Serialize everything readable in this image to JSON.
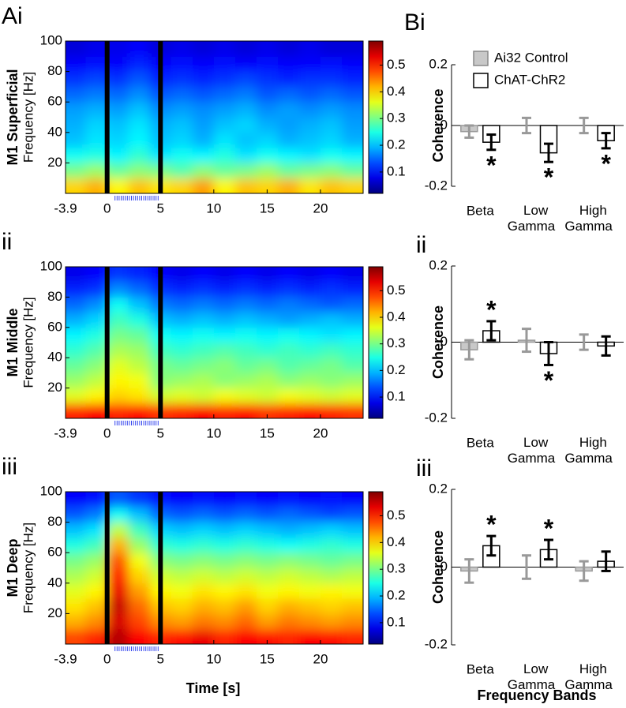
{
  "chart_data": [
    {
      "type": "heatmap",
      "panel": "Ai",
      "title": "M1 Superficial",
      "ylabel": "Frequency [Hz]",
      "xlim": [
        -3.9,
        24
      ],
      "xticks": [
        -3.9,
        0,
        5,
        10,
        15,
        20
      ],
      "ylim": [
        0,
        100
      ],
      "yticks": [
        20,
        40,
        60,
        80,
        100
      ],
      "clim": [
        0.02,
        0.59
      ],
      "cticks": [
        0.1,
        0.2,
        0.3,
        0.4,
        0.5
      ],
      "vlines": [
        0,
        5
      ],
      "x": [
        -3,
        -1,
        1,
        3,
        5,
        7,
        9,
        11,
        13,
        15,
        17,
        19,
        21,
        23
      ],
      "y": [
        5,
        15,
        25,
        35,
        45,
        55,
        65,
        75,
        85,
        95
      ],
      "z": [
        [
          0.4,
          0.42,
          0.38,
          0.41,
          0.39,
          0.4,
          0.43,
          0.38,
          0.41,
          0.4,
          0.42,
          0.39,
          0.41,
          0.4
        ],
        [
          0.3,
          0.32,
          0.29,
          0.31,
          0.3,
          0.28,
          0.31,
          0.29,
          0.3,
          0.32,
          0.29,
          0.3,
          0.31,
          0.29
        ],
        [
          0.24,
          0.25,
          0.23,
          0.26,
          0.22,
          0.24,
          0.23,
          0.25,
          0.22,
          0.24,
          0.23,
          0.22,
          0.24,
          0.23
        ],
        [
          0.2,
          0.22,
          0.21,
          0.23,
          0.2,
          0.21,
          0.19,
          0.22,
          0.2,
          0.21,
          0.19,
          0.2,
          0.21,
          0.19
        ],
        [
          0.19,
          0.21,
          0.2,
          0.22,
          0.19,
          0.2,
          0.18,
          0.2,
          0.21,
          0.19,
          0.18,
          0.19,
          0.2,
          0.18
        ],
        [
          0.18,
          0.19,
          0.18,
          0.2,
          0.17,
          0.18,
          0.17,
          0.18,
          0.19,
          0.17,
          0.18,
          0.17,
          0.18,
          0.17
        ],
        [
          0.15,
          0.16,
          0.15,
          0.17,
          0.14,
          0.15,
          0.14,
          0.15,
          0.16,
          0.14,
          0.15,
          0.14,
          0.15,
          0.14
        ],
        [
          0.12,
          0.13,
          0.12,
          0.14,
          0.11,
          0.12,
          0.11,
          0.12,
          0.13,
          0.12,
          0.11,
          0.12,
          0.12,
          0.11
        ],
        [
          0.09,
          0.1,
          0.09,
          0.11,
          0.09,
          0.1,
          0.09,
          0.1,
          0.09,
          0.1,
          0.09,
          0.09,
          0.1,
          0.09
        ],
        [
          0.07,
          0.08,
          0.08,
          0.09,
          0.07,
          0.08,
          0.07,
          0.08,
          0.07,
          0.08,
          0.07,
          0.08,
          0.07,
          0.07
        ]
      ]
    },
    {
      "type": "heatmap",
      "panel": "ii",
      "title": "M1 Middle",
      "ylabel": "Frequency [Hz]",
      "xlim": [
        -3.9,
        24
      ],
      "xticks": [
        -3.9,
        0,
        5,
        10,
        15,
        20
      ],
      "ylim": [
        0,
        100
      ],
      "yticks": [
        20,
        40,
        60,
        80,
        100
      ],
      "clim": [
        0.02,
        0.59
      ],
      "cticks": [
        0.1,
        0.2,
        0.3,
        0.4,
        0.5
      ],
      "vlines": [
        0,
        5
      ],
      "x": [
        -3,
        -1,
        1,
        3,
        5,
        7,
        9,
        11,
        13,
        15,
        17,
        19,
        21,
        23
      ],
      "y": [
        5,
        15,
        25,
        35,
        45,
        55,
        65,
        75,
        85,
        95
      ],
      "z": [
        [
          0.5,
          0.52,
          0.5,
          0.51,
          0.49,
          0.5,
          0.52,
          0.5,
          0.51,
          0.49,
          0.5,
          0.51,
          0.5,
          0.49
        ],
        [
          0.36,
          0.38,
          0.4,
          0.39,
          0.35,
          0.36,
          0.35,
          0.37,
          0.36,
          0.35,
          0.37,
          0.36,
          0.35,
          0.36
        ],
        [
          0.32,
          0.34,
          0.38,
          0.37,
          0.31,
          0.32,
          0.33,
          0.31,
          0.32,
          0.33,
          0.31,
          0.32,
          0.31,
          0.32
        ],
        [
          0.29,
          0.31,
          0.36,
          0.34,
          0.3,
          0.29,
          0.3,
          0.31,
          0.29,
          0.3,
          0.28,
          0.29,
          0.3,
          0.28
        ],
        [
          0.26,
          0.28,
          0.33,
          0.32,
          0.27,
          0.26,
          0.27,
          0.28,
          0.27,
          0.26,
          0.27,
          0.26,
          0.27,
          0.26
        ],
        [
          0.23,
          0.25,
          0.3,
          0.29,
          0.24,
          0.23,
          0.24,
          0.23,
          0.24,
          0.23,
          0.24,
          0.23,
          0.22,
          0.23
        ],
        [
          0.19,
          0.21,
          0.27,
          0.25,
          0.2,
          0.19,
          0.2,
          0.19,
          0.2,
          0.19,
          0.18,
          0.19,
          0.2,
          0.19
        ],
        [
          0.15,
          0.17,
          0.24,
          0.2,
          0.16,
          0.15,
          0.16,
          0.15,
          0.16,
          0.15,
          0.16,
          0.15,
          0.14,
          0.15
        ],
        [
          0.11,
          0.12,
          0.17,
          0.15,
          0.12,
          0.11,
          0.12,
          0.11,
          0.12,
          0.11,
          0.12,
          0.11,
          0.12,
          0.11
        ],
        [
          0.08,
          0.09,
          0.12,
          0.11,
          0.09,
          0.08,
          0.09,
          0.08,
          0.09,
          0.08,
          0.09,
          0.08,
          0.09,
          0.08
        ]
      ]
    },
    {
      "type": "heatmap",
      "panel": "iii",
      "title": "M1 Deep",
      "ylabel": "Frequency [Hz]",
      "xlabel": "Time [s]",
      "xlim": [
        -3.9,
        24
      ],
      "xticks": [
        -3.9,
        0,
        5,
        10,
        15,
        20
      ],
      "ylim": [
        0,
        100
      ],
      "yticks": [
        20,
        40,
        60,
        80,
        100
      ],
      "clim": [
        0.02,
        0.59
      ],
      "cticks": [
        0.1,
        0.2,
        0.3,
        0.4,
        0.5
      ],
      "vlines": [
        0,
        5
      ],
      "x": [
        -3,
        -1,
        1,
        3,
        5,
        7,
        9,
        11,
        13,
        15,
        17,
        19,
        21,
        23
      ],
      "y": [
        5,
        15,
        25,
        35,
        45,
        55,
        65,
        75,
        85,
        95
      ],
      "z": [
        [
          0.48,
          0.5,
          0.56,
          0.52,
          0.5,
          0.51,
          0.53,
          0.5,
          0.52,
          0.51,
          0.5,
          0.52,
          0.51,
          0.5
        ],
        [
          0.42,
          0.44,
          0.54,
          0.48,
          0.44,
          0.43,
          0.45,
          0.44,
          0.46,
          0.43,
          0.45,
          0.44,
          0.43,
          0.44
        ],
        [
          0.39,
          0.41,
          0.55,
          0.46,
          0.41,
          0.4,
          0.42,
          0.41,
          0.43,
          0.4,
          0.42,
          0.41,
          0.4,
          0.41
        ],
        [
          0.36,
          0.38,
          0.53,
          0.43,
          0.38,
          0.37,
          0.39,
          0.38,
          0.39,
          0.37,
          0.38,
          0.37,
          0.38,
          0.37
        ],
        [
          0.33,
          0.35,
          0.5,
          0.4,
          0.35,
          0.34,
          0.35,
          0.34,
          0.35,
          0.34,
          0.35,
          0.34,
          0.33,
          0.34
        ],
        [
          0.3,
          0.32,
          0.47,
          0.37,
          0.31,
          0.3,
          0.31,
          0.3,
          0.31,
          0.3,
          0.31,
          0.3,
          0.29,
          0.3
        ],
        [
          0.25,
          0.27,
          0.42,
          0.32,
          0.26,
          0.25,
          0.26,
          0.25,
          0.26,
          0.25,
          0.24,
          0.25,
          0.26,
          0.25
        ],
        [
          0.2,
          0.22,
          0.34,
          0.27,
          0.21,
          0.2,
          0.21,
          0.2,
          0.21,
          0.2,
          0.19,
          0.2,
          0.21,
          0.2
        ],
        [
          0.14,
          0.16,
          0.24,
          0.2,
          0.15,
          0.14,
          0.15,
          0.14,
          0.15,
          0.14,
          0.15,
          0.14,
          0.13,
          0.14
        ],
        [
          0.09,
          0.1,
          0.14,
          0.12,
          0.1,
          0.09,
          0.1,
          0.09,
          0.1,
          0.09,
          0.1,
          0.09,
          0.1,
          0.09
        ]
      ]
    },
    {
      "type": "bar",
      "panel": "Bi",
      "ylabel": "Coherence",
      "legend": "upper left",
      "categories": [
        "Beta",
        "Low Gamma",
        "High Gamma"
      ],
      "ylim": [
        -0.2,
        0.2
      ],
      "yticks": [
        -0.2,
        0,
        0.2
      ],
      "series": [
        {
          "name": "Ai32 Control",
          "color": "#c8c8c8",
          "edge": "#999999",
          "values": [
            -0.02,
            0.0,
            0.0
          ],
          "errors": [
            0.02,
            0.025,
            0.025
          ]
        },
        {
          "name": "ChAT-ChR2",
          "color": "#ffffff",
          "edge": "#000000",
          "values": [
            -0.055,
            -0.09,
            -0.05
          ],
          "errors": [
            0.025,
            0.03,
            0.025
          ]
        }
      ],
      "stars": [
        {
          "series": 1,
          "category": 0,
          "text": "*"
        },
        {
          "series": 1,
          "category": 1,
          "text": "*"
        },
        {
          "series": 1,
          "category": 2,
          "text": "*"
        }
      ]
    },
    {
      "type": "bar",
      "panel": "ii",
      "ylabel": "Coherence",
      "categories": [
        "Beta",
        "Low Gamma",
        "High Gamma"
      ],
      "ylim": [
        -0.2,
        0.2
      ],
      "yticks": [
        -0.2,
        0,
        0.2
      ],
      "series": [
        {
          "name": "Ai32 Control",
          "color": "#c8c8c8",
          "edge": "#999999",
          "values": [
            -0.02,
            0.005,
            0.0
          ],
          "errors": [
            0.025,
            0.03,
            0.02
          ]
        },
        {
          "name": "ChAT-ChR2",
          "color": "#ffffff",
          "edge": "#000000",
          "values": [
            0.03,
            -0.03,
            -0.01
          ],
          "errors": [
            0.025,
            0.03,
            0.025
          ]
        }
      ],
      "stars": [
        {
          "series": 1,
          "category": 0,
          "text": "*"
        },
        {
          "series": 1,
          "category": 1,
          "text": "*"
        }
      ]
    },
    {
      "type": "bar",
      "panel": "iii",
      "ylabel": "Coherence",
      "xlabel": "Frequency Bands",
      "categories": [
        "Beta",
        "Low Gamma",
        "High Gamma"
      ],
      "ylim": [
        -0.2,
        0.2
      ],
      "yticks": [
        -0.2,
        0,
        0.2
      ],
      "series": [
        {
          "name": "Ai32 Control",
          "color": "#c8c8c8",
          "edge": "#999999",
          "values": [
            -0.01,
            0.0,
            -0.01
          ],
          "errors": [
            0.03,
            0.03,
            0.025
          ]
        },
        {
          "name": "ChAT-ChR2",
          "color": "#ffffff",
          "edge": "#000000",
          "values": [
            0.055,
            0.045,
            0.015
          ],
          "errors": [
            0.025,
            0.025,
            0.025
          ]
        }
      ],
      "stars": [
        {
          "series": 1,
          "category": 0,
          "text": "*"
        },
        {
          "series": 1,
          "category": 1,
          "text": "*"
        }
      ]
    }
  ]
}
